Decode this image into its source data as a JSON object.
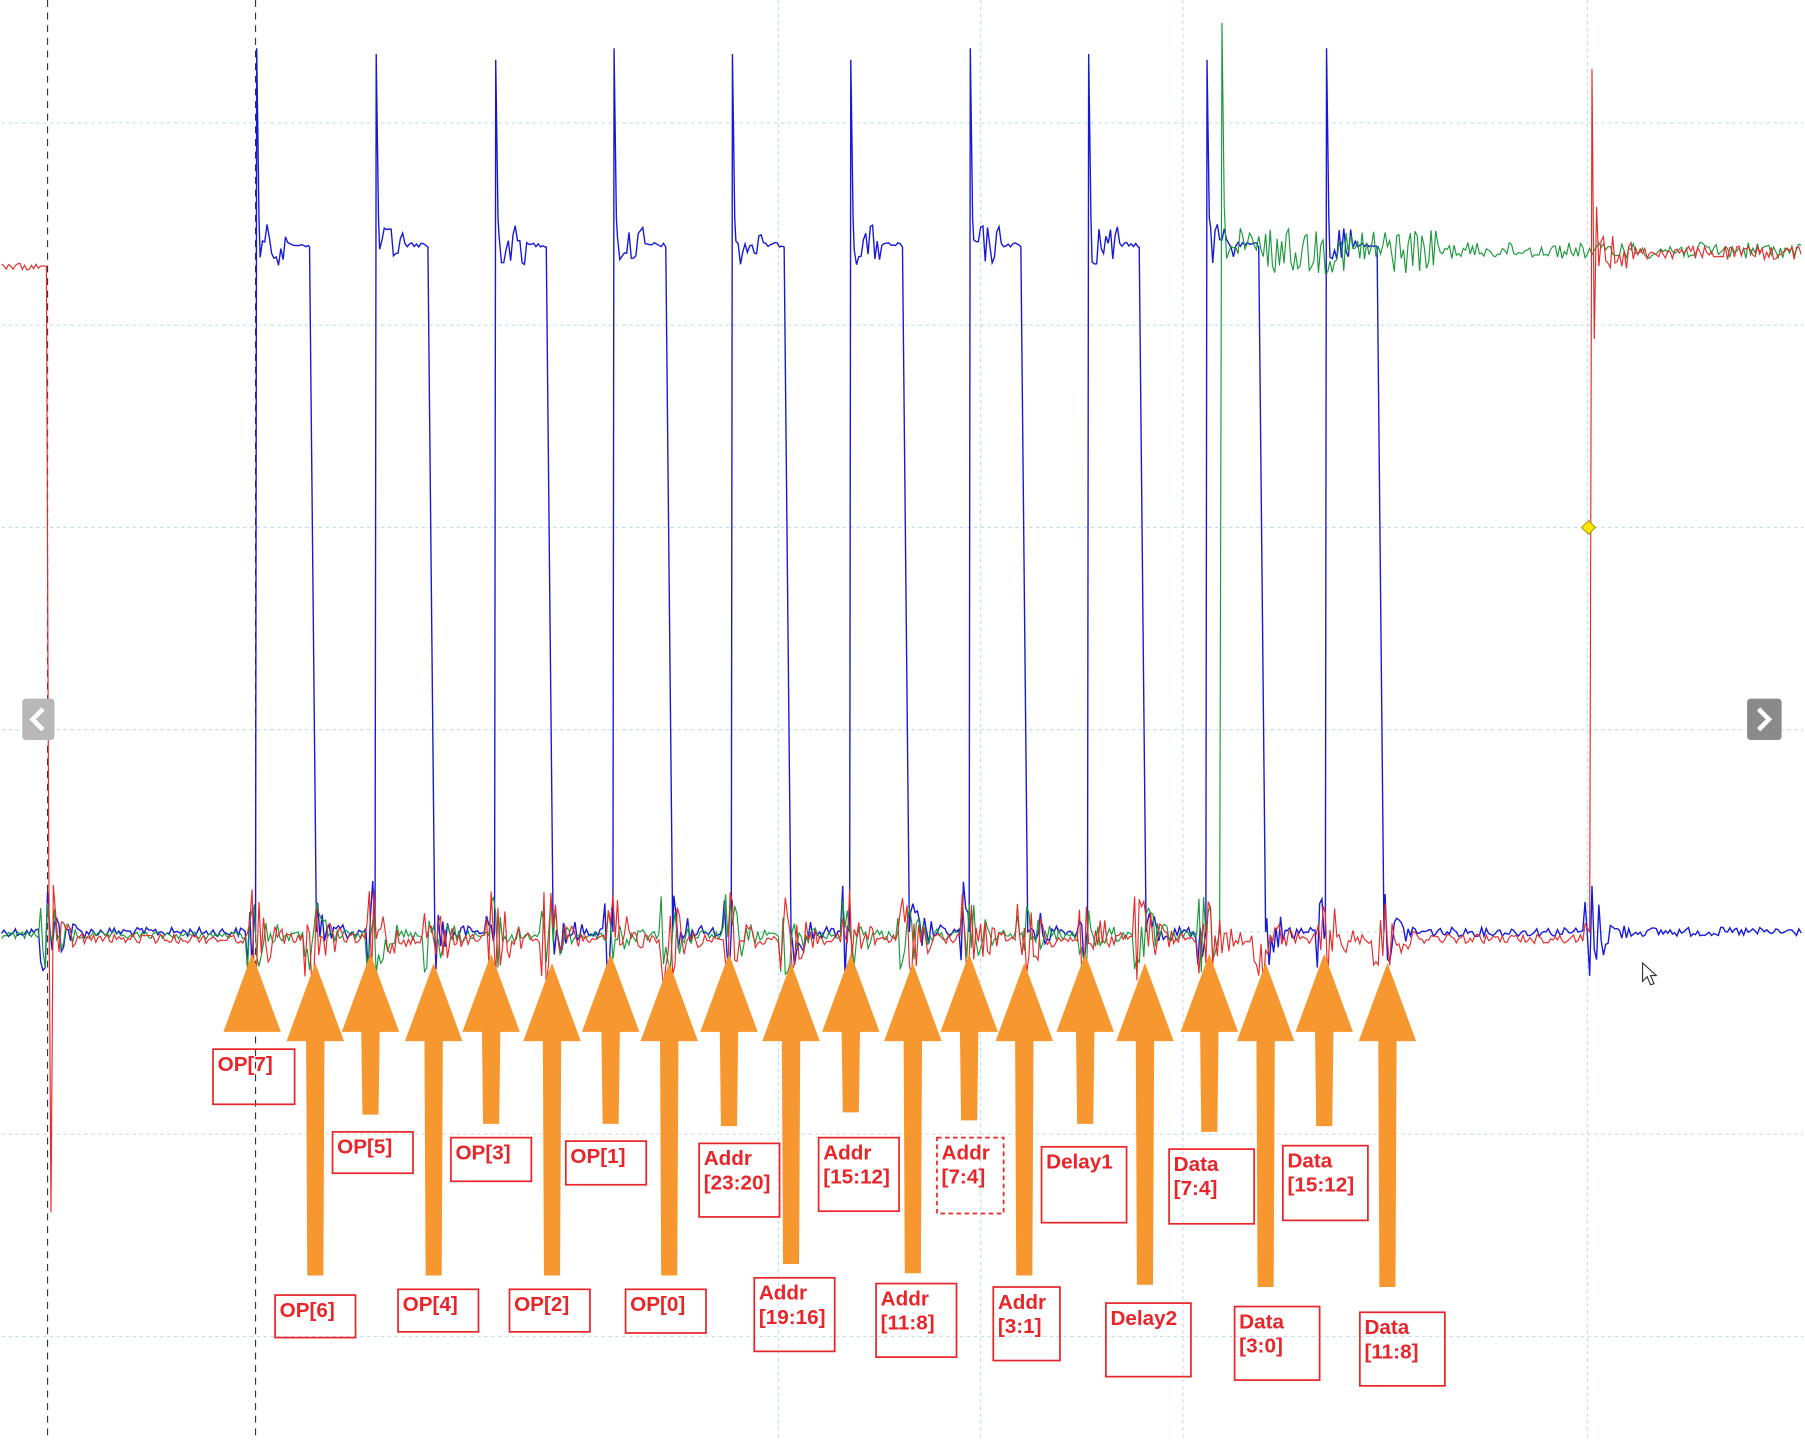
{
  "labels": [
    {
      "lines": [
        "OP[7]"
      ]
    },
    {
      "lines": [
        "OP[6]"
      ]
    },
    {
      "lines": [
        "OP[5]"
      ]
    },
    {
      "lines": [
        "OP[4]"
      ]
    },
    {
      "lines": [
        "OP[3]"
      ]
    },
    {
      "lines": [
        "OP[2]"
      ]
    },
    {
      "lines": [
        "OP[1]"
      ]
    },
    {
      "lines": [
        "OP[0]"
      ]
    },
    {
      "lines": [
        "Addr",
        "[23:20]"
      ]
    },
    {
      "lines": [
        "Addr",
        "[19:16]"
      ]
    },
    {
      "lines": [
        "Addr",
        "[15:12]"
      ]
    },
    {
      "lines": [
        "Addr",
        "[11:8]"
      ]
    },
    {
      "lines": [
        "Addr",
        "[7:4]"
      ]
    },
    {
      "lines": [
        "Addr",
        "[3:1]"
      ]
    },
    {
      "lines": [
        "Delay1"
      ]
    },
    {
      "lines": [
        "Delay2"
      ]
    },
    {
      "lines": [
        "Data",
        "[7:4]"
      ]
    },
    {
      "lines": [
        "Data",
        "[3:0]"
      ]
    },
    {
      "lines": [
        "Data",
        "[15:12]"
      ]
    },
    {
      "lines": [
        "Data",
        "[11:8]"
      ]
    }
  ]
}
